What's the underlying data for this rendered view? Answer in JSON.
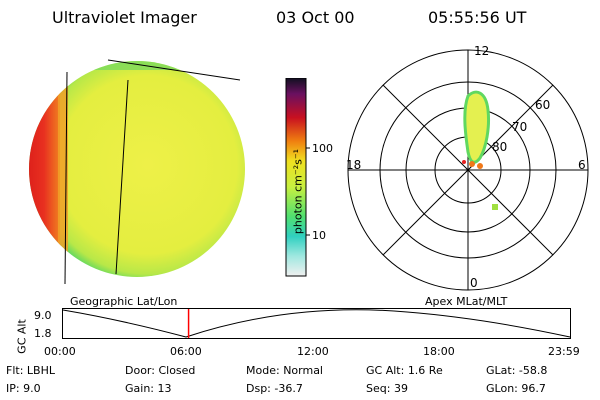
{
  "header": {
    "instrument": "Ultraviolet Imager",
    "date": "03 Oct 00",
    "time": "05:55:56 UT"
  },
  "colorbar": {
    "unit_label": "photon cm⁻²s⁻¹",
    "ticks": [
      "100",
      "10"
    ]
  },
  "polar": {
    "mlt_labels": {
      "top": "12",
      "left": "18",
      "right": "6",
      "bottom": "0"
    },
    "lat_labels": [
      "60",
      "70",
      "80"
    ]
  },
  "timeline": {
    "left_label": "Geographic Lat/Lon",
    "right_label": "Apex MLat/MLT",
    "axis_title": "GC Alt",
    "y_ticks": [
      "9.0",
      "1.8"
    ],
    "x_ticks": [
      "00:00",
      "06:00",
      "12:00",
      "18:00",
      "23:59"
    ],
    "current_time_fraction": 0.2472,
    "marker_color": "#ff0000"
  },
  "params": {
    "row1": [
      {
        "label": "Flt:",
        "value": "LBHL"
      },
      {
        "label": "Door:",
        "value": "Closed"
      },
      {
        "label": "Mode:",
        "value": "Normal"
      },
      {
        "label": "GC Alt:",
        "value": "1.6 Re"
      },
      {
        "label": "GLat:",
        "value": "-58.8"
      }
    ],
    "row2": [
      {
        "label": "IP:",
        "value": "9.0"
      },
      {
        "label": "Gain:",
        "value": "13"
      },
      {
        "label": "Dsp:",
        "value": "-36.7"
      },
      {
        "label": "Seq:",
        "value": "39"
      },
      {
        "label": "GLon:",
        "value": "96.7"
      }
    ]
  },
  "colors": {
    "disk_main": "#e8f040",
    "disk_edge": "#60d860",
    "disk_hot": "#e82020",
    "disk_orange": "#f07818",
    "oval_fill": "#e4f050"
  }
}
